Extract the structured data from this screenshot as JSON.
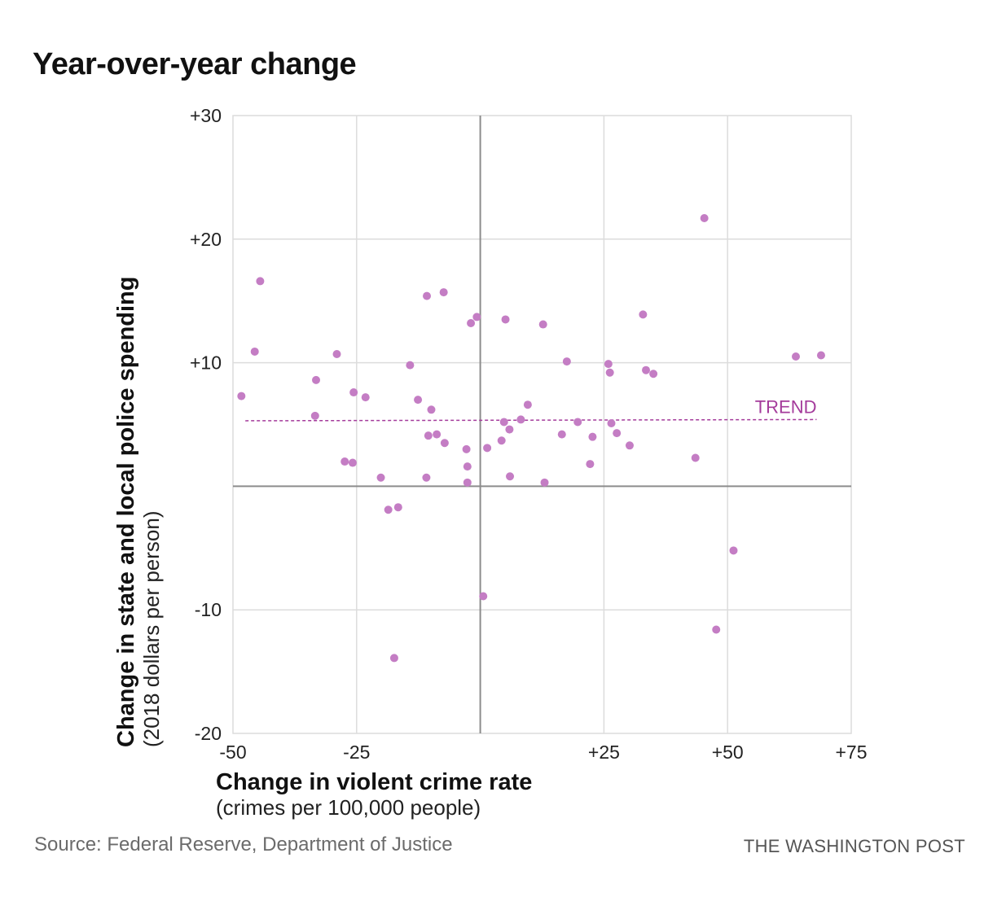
{
  "chart_data": {
    "type": "scatter",
    "title": "Year-over-year change",
    "xlabel": "Change in violent crime rate",
    "xlabel_sub": "(crimes per 100,000 people)",
    "ylabel": "Change in state and local police spending",
    "ylabel_sub": "(2018 dollars per person)",
    "xlim": [
      -50,
      75
    ],
    "ylim": [
      -20,
      30
    ],
    "x_ticks": [
      -50,
      -25,
      0,
      25,
      50,
      75
    ],
    "x_tick_labels": [
      "-50",
      "-25",
      "",
      "+25",
      "+50",
      "+75"
    ],
    "y_ticks": [
      -20,
      -10,
      0,
      10,
      20,
      30
    ],
    "y_tick_labels": [
      "-20",
      "-10",
      "",
      "+10",
      "+20",
      "+30"
    ],
    "grid": true,
    "point_color": "#c47dc4",
    "trend_color": "#a43b9b",
    "trend": {
      "label": "TREND",
      "x": [
        -47.5,
        68
      ],
      "y": [
        5.3,
        5.4
      ]
    },
    "points": [
      {
        "x": -48.3,
        "y": 7.3
      },
      {
        "x": -44.5,
        "y": 16.6
      },
      {
        "x": -45.6,
        "y": 10.9
      },
      {
        "x": -33.2,
        "y": 8.6
      },
      {
        "x": -33.4,
        "y": 5.7
      },
      {
        "x": -29.0,
        "y": 10.7
      },
      {
        "x": -25.6,
        "y": 7.6
      },
      {
        "x": -23.2,
        "y": 7.2
      },
      {
        "x": -27.4,
        "y": 2.0
      },
      {
        "x": -25.8,
        "y": 1.9
      },
      {
        "x": -20.1,
        "y": 0.7
      },
      {
        "x": -18.6,
        "y": -1.9
      },
      {
        "x": -16.6,
        "y": -1.7
      },
      {
        "x": -17.4,
        "y": -13.9
      },
      {
        "x": -14.2,
        "y": 9.8
      },
      {
        "x": -12.6,
        "y": 7.0
      },
      {
        "x": -10.8,
        "y": 15.4
      },
      {
        "x": -9.9,
        "y": 6.2
      },
      {
        "x": -7.4,
        "y": 15.7
      },
      {
        "x": -10.5,
        "y": 4.1
      },
      {
        "x": -8.8,
        "y": 4.2
      },
      {
        "x": -7.2,
        "y": 3.5
      },
      {
        "x": -10.9,
        "y": 0.7
      },
      {
        "x": -2.8,
        "y": 3.0
      },
      {
        "x": -2.6,
        "y": 1.6
      },
      {
        "x": -2.6,
        "y": 0.3
      },
      {
        "x": -1.9,
        "y": 13.2
      },
      {
        "x": -0.7,
        "y": 13.7
      },
      {
        "x": 1.4,
        "y": 3.1
      },
      {
        "x": 0.6,
        "y": -8.9
      },
      {
        "x": 4.8,
        "y": 5.2
      },
      {
        "x": 5.1,
        "y": 13.5
      },
      {
        "x": 4.3,
        "y": 3.7
      },
      {
        "x": 5.9,
        "y": 4.6
      },
      {
        "x": 6.0,
        "y": 0.8
      },
      {
        "x": 8.2,
        "y": 5.4
      },
      {
        "x": 9.6,
        "y": 6.6
      },
      {
        "x": 12.7,
        "y": 13.1
      },
      {
        "x": 13.0,
        "y": 0.3
      },
      {
        "x": 16.5,
        "y": 4.2
      },
      {
        "x": 17.5,
        "y": 10.1
      },
      {
        "x": 19.7,
        "y": 5.2
      },
      {
        "x": 22.2,
        "y": 1.8
      },
      {
        "x": 22.7,
        "y": 4.0
      },
      {
        "x": 25.9,
        "y": 9.9
      },
      {
        "x": 26.2,
        "y": 9.2
      },
      {
        "x": 26.5,
        "y": 5.1
      },
      {
        "x": 27.6,
        "y": 4.3
      },
      {
        "x": 30.2,
        "y": 3.3
      },
      {
        "x": 32.9,
        "y": 13.9
      },
      {
        "x": 33.5,
        "y": 9.4
      },
      {
        "x": 35.0,
        "y": 9.1
      },
      {
        "x": 43.5,
        "y": 2.3
      },
      {
        "x": 45.3,
        "y": 21.7
      },
      {
        "x": 51.2,
        "y": -5.2
      },
      {
        "x": 47.7,
        "y": -11.6
      },
      {
        "x": 63.8,
        "y": 10.5
      },
      {
        "x": 68.9,
        "y": 10.6
      }
    ]
  },
  "footer": {
    "source": "Source: Federal Reserve, Department of Justice",
    "credit": "THE WASHINGTON POST"
  }
}
